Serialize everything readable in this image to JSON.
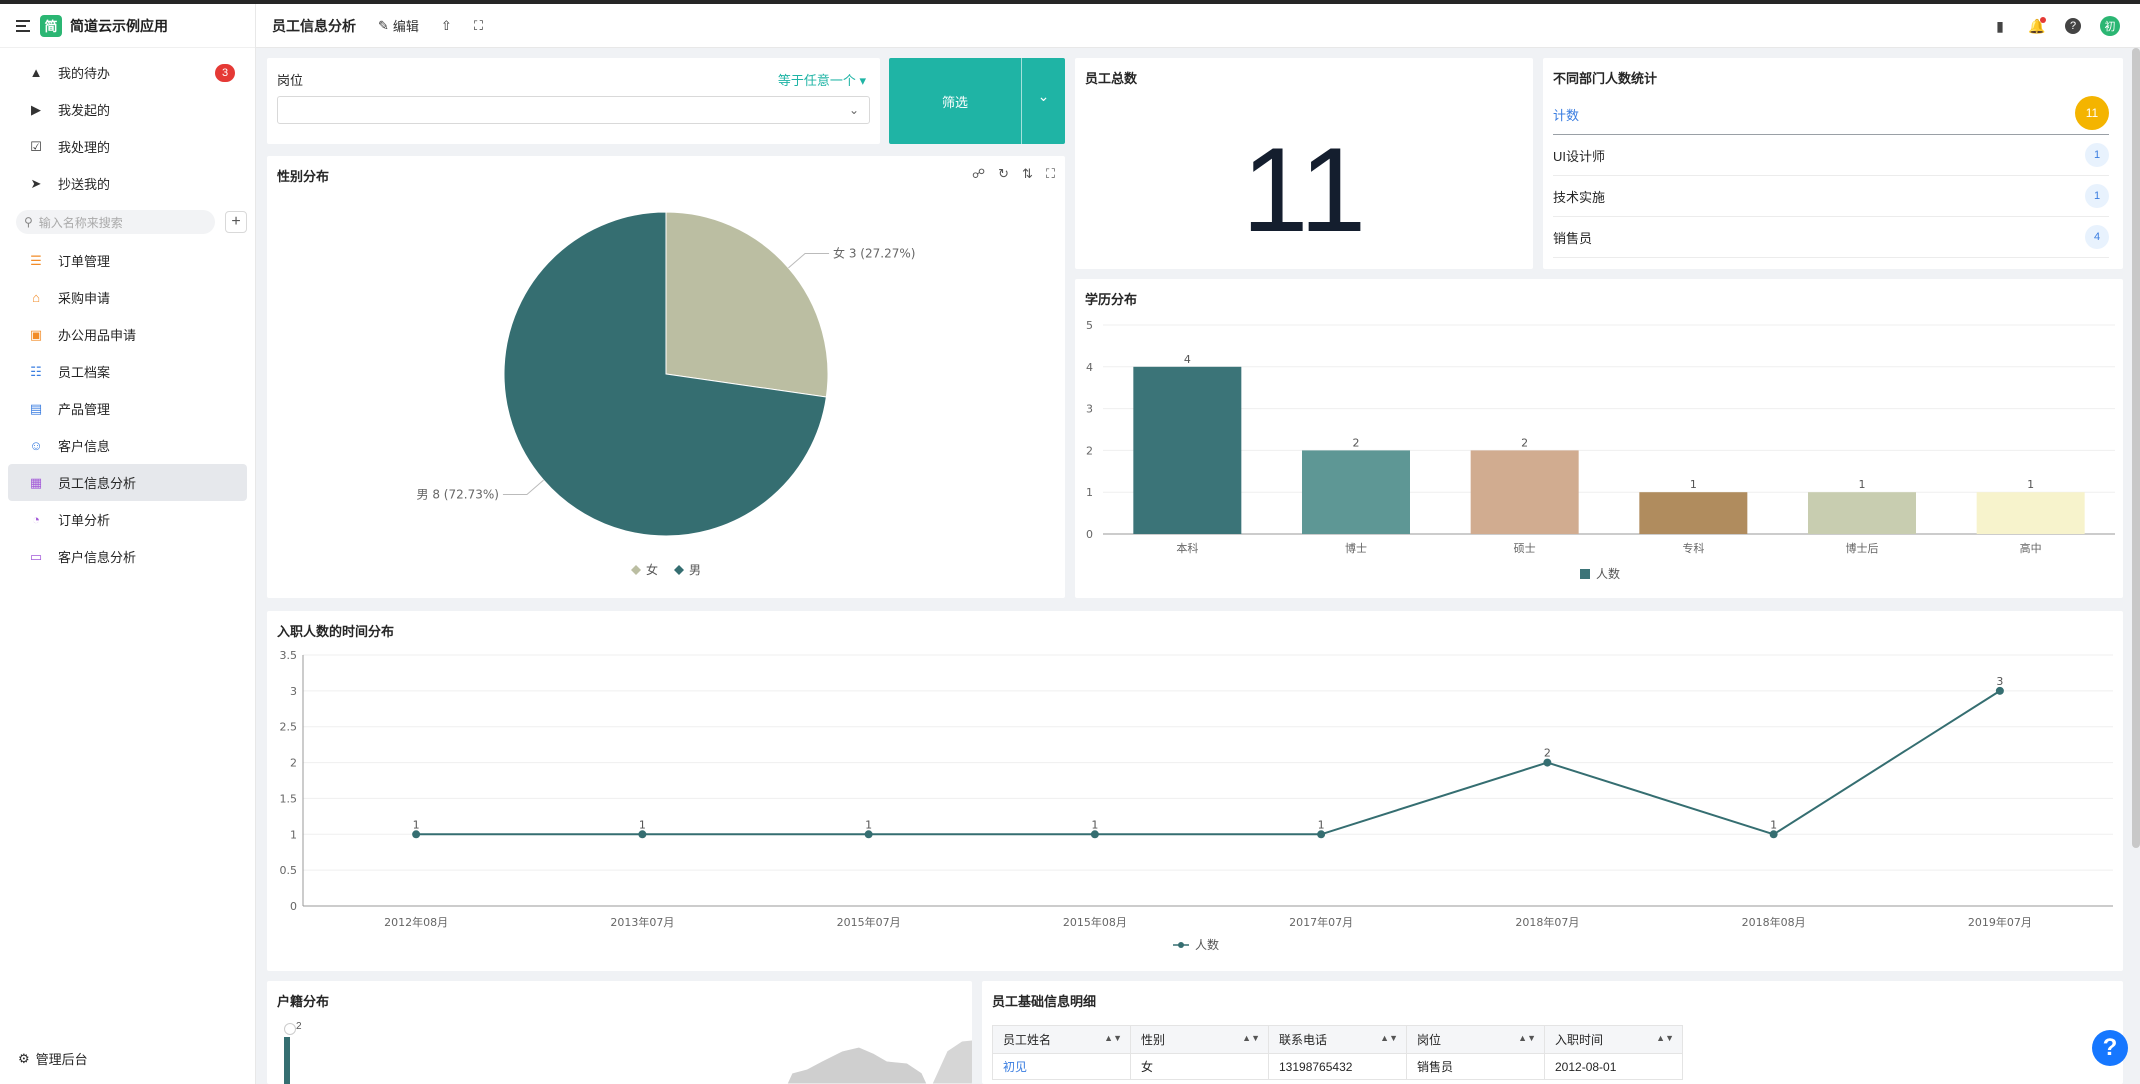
{
  "app": {
    "name": "简道云示例应用",
    "logo_char": "简"
  },
  "sidebar": {
    "top_items": [
      {
        "label": "我的待办",
        "icon": "bell-icon",
        "badge": "3"
      },
      {
        "label": "我发起的",
        "icon": "play-circle-icon"
      },
      {
        "label": "我处理的",
        "icon": "checkbox-icon"
      },
      {
        "label": "抄送我的",
        "icon": "send-icon"
      }
    ],
    "search_placeholder": "输入名称来搜索",
    "items": [
      {
        "label": "订单管理",
        "icon": "form-icon",
        "color": "#f28c28"
      },
      {
        "label": "采购申请",
        "icon": "cart-icon",
        "color": "#f28c28"
      },
      {
        "label": "办公用品申请",
        "icon": "box-icon",
        "color": "#f28c28"
      },
      {
        "label": "员工档案",
        "icon": "document-icon",
        "color": "#3a7de0"
      },
      {
        "label": "产品管理",
        "icon": "store-icon",
        "color": "#3a7de0"
      },
      {
        "label": "客户信息",
        "icon": "user-icon",
        "color": "#3a7de0"
      },
      {
        "label": "员工信息分析",
        "icon": "dashboard-icon",
        "color": "#a35ad8",
        "active": true
      },
      {
        "label": "订单分析",
        "icon": "pie-icon",
        "color": "#a35ad8"
      },
      {
        "label": "客户信息分析",
        "icon": "monitor-icon",
        "color": "#a35ad8"
      }
    ],
    "footer": "管理后台"
  },
  "header": {
    "title": "员工信息分析",
    "edit_label": "编辑",
    "avatar": "初"
  },
  "filter": {
    "label": "岗位",
    "operator": "等于任意一个",
    "button": "筛选"
  },
  "gender": {
    "title": "性别分布"
  },
  "total": {
    "title": "员工总数",
    "value": "11"
  },
  "dept": {
    "title": "不同部门人数统计",
    "rows": [
      {
        "name": "计数",
        "count": "11"
      },
      {
        "name": "UI设计师",
        "count": "1"
      },
      {
        "name": "技术实施",
        "count": "1"
      },
      {
        "name": "销售员",
        "count": "4"
      }
    ]
  },
  "edu": {
    "title": "学历分布"
  },
  "hire": {
    "title": "入职人数的时间分布"
  },
  "hukou": {
    "title": "户籍分布",
    "max_label": "2"
  },
  "detail": {
    "title": "员工基础信息明细",
    "columns": [
      "员工姓名",
      "性别",
      "联系电话",
      "岗位",
      "入职时间"
    ],
    "rows": [
      [
        "初见",
        "女",
        "13198765432",
        "销售员",
        "2012-08-01"
      ]
    ]
  },
  "chart_data": [
    {
      "type": "pie",
      "labels": [
        "女",
        "男"
      ],
      "values": [
        3,
        8
      ],
      "data_labels": [
        "女 3 (27.27%)",
        "男 8 (72.73%)"
      ],
      "colors": [
        "#bbbea2",
        "#356e71"
      ],
      "legend": "bottom"
    },
    {
      "type": "bar",
      "categories": [
        "本科",
        "博士",
        "硕士",
        "专科",
        "博士后",
        "高中"
      ],
      "series": [
        {
          "name": "人数",
          "values": [
            4,
            2,
            2,
            1,
            1,
            1
          ]
        }
      ],
      "colors": [
        "#3b7478",
        "#5e9795",
        "#d1ac90",
        "#b08c5e",
        "#c8cdb0",
        "#f7f3cc"
      ],
      "ylim": [
        0,
        5
      ],
      "yticks": [
        0,
        1,
        2,
        3,
        4,
        5
      ],
      "legend": "bottom"
    },
    {
      "type": "line",
      "x": [
        "2012年08月",
        "2013年07月",
        "2015年07月",
        "2015年08月",
        "2017年07月",
        "2018年07月",
        "2018年08月",
        "2019年07月"
      ],
      "series": [
        {
          "name": "人数",
          "values": [
            1,
            1,
            1,
            1,
            1,
            2,
            1,
            3
          ]
        }
      ],
      "ylim": [
        0,
        3.5
      ],
      "yticks": [
        0,
        0.5,
        1,
        1.5,
        2,
        2.5,
        3,
        3.5
      ],
      "color": "#356e71",
      "legend": "bottom"
    }
  ]
}
